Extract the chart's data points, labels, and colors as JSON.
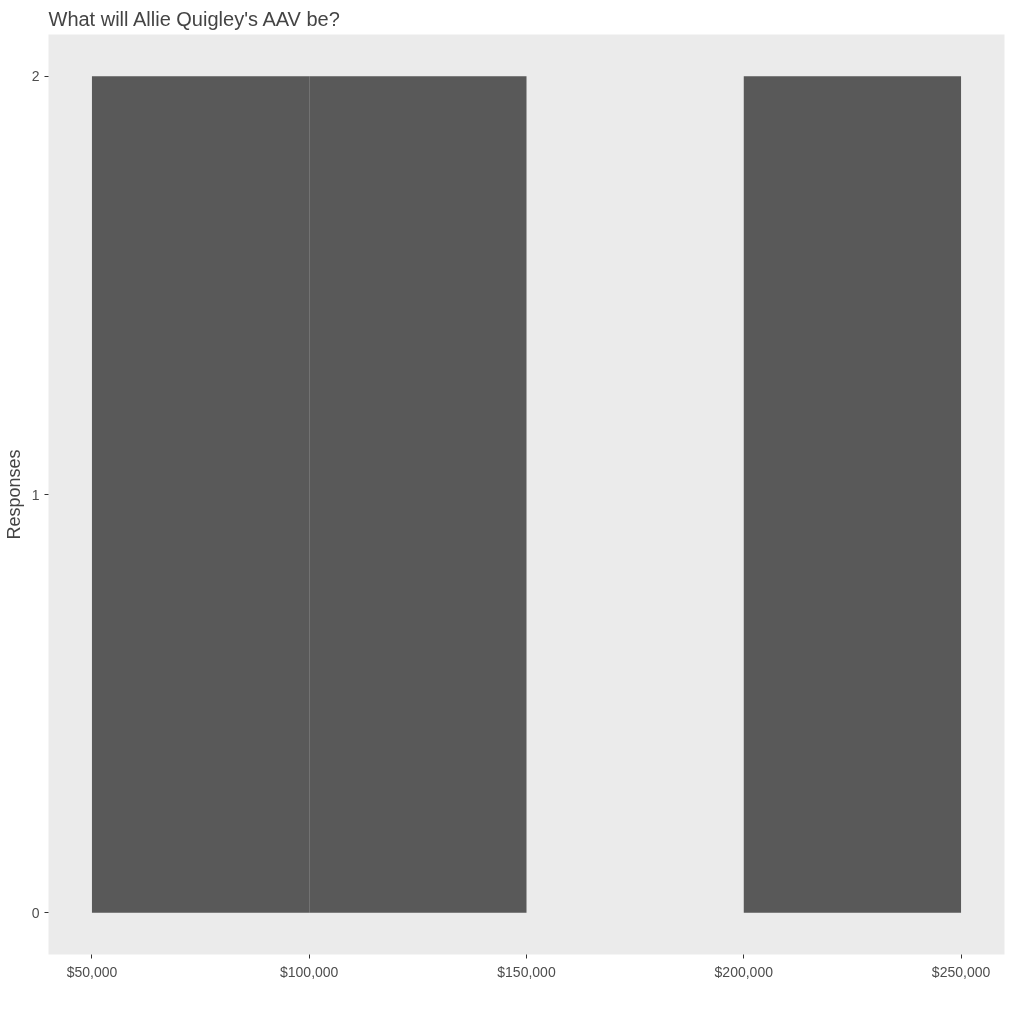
{
  "chart_data": {
    "type": "histogram",
    "title": "What will Allie Quigley's AAV be?",
    "ylabel": "Responses",
    "bins": [
      50000,
      100000,
      150000,
      200000,
      250000
    ],
    "values": [
      2,
      2,
      0,
      2
    ],
    "color": "#595959",
    "xlim": [
      40000,
      260000
    ],
    "ylim": [
      -0.1,
      2.1
    ],
    "xticks": [
      {
        "value": 50000,
        "label": "$50,000"
      },
      {
        "value": 100000,
        "label": "$100,000"
      },
      {
        "value": 150000,
        "label": "$150,000"
      },
      {
        "value": 200000,
        "label": "$200,000"
      },
      {
        "value": 250000,
        "label": "$250,000"
      }
    ],
    "yticks": [
      0,
      1,
      2
    ],
    "grid": false
  }
}
